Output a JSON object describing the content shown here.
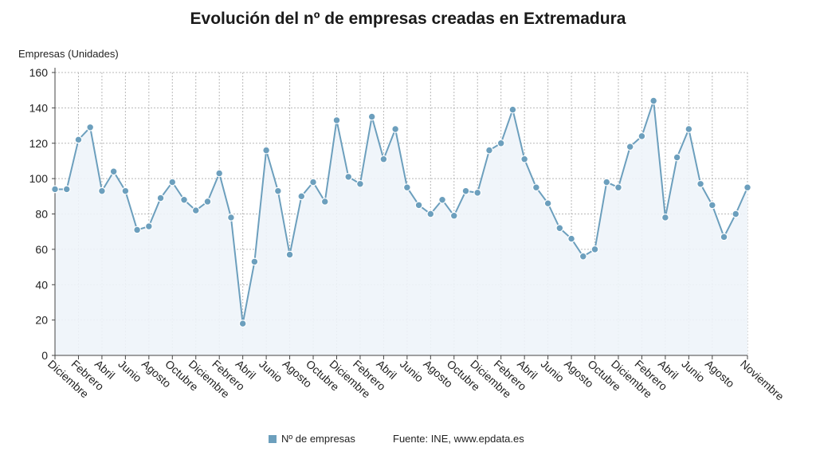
{
  "chart_data": {
    "type": "line",
    "title": "Evolución del nº de empresas creadas en Extremadura",
    "ylabel": "Empresas (Unidades)",
    "xlabel": "",
    "ylim": [
      0,
      160
    ],
    "yticks": [
      0,
      20,
      40,
      60,
      80,
      100,
      120,
      140,
      160
    ],
    "grid": true,
    "legend_position": "bottom",
    "x_tick_labels": [
      {
        "index": 0,
        "label": "Diciembre"
      },
      {
        "index": 2,
        "label": "Febrero"
      },
      {
        "index": 4,
        "label": "Abril"
      },
      {
        "index": 6,
        "label": "Junio"
      },
      {
        "index": 8,
        "label": "Agosto"
      },
      {
        "index": 10,
        "label": "Octubre"
      },
      {
        "index": 12,
        "label": "Diciembre"
      },
      {
        "index": 14,
        "label": "Febrero"
      },
      {
        "index": 16,
        "label": "Abril"
      },
      {
        "index": 18,
        "label": "Junio"
      },
      {
        "index": 20,
        "label": "Agosto"
      },
      {
        "index": 22,
        "label": "Octubre"
      },
      {
        "index": 24,
        "label": "Diciembre"
      },
      {
        "index": 26,
        "label": "Febrero"
      },
      {
        "index": 28,
        "label": "Abril"
      },
      {
        "index": 30,
        "label": "Junio"
      },
      {
        "index": 32,
        "label": "Agosto"
      },
      {
        "index": 34,
        "label": "Octubre"
      },
      {
        "index": 36,
        "label": "Diciembre"
      },
      {
        "index": 38,
        "label": "Febrero"
      },
      {
        "index": 40,
        "label": "Abril"
      },
      {
        "index": 42,
        "label": "Junio"
      },
      {
        "index": 44,
        "label": "Agosto"
      },
      {
        "index": 46,
        "label": "Octubre"
      },
      {
        "index": 48,
        "label": "Diciembre"
      },
      {
        "index": 50,
        "label": "Febrero"
      },
      {
        "index": 52,
        "label": "Abril"
      },
      {
        "index": 54,
        "label": "Junio"
      },
      {
        "index": 56,
        "label": "Agosto"
      },
      {
        "index": 59,
        "label": "Noviembre"
      }
    ],
    "series": [
      {
        "name": "Nº de empresas",
        "color": "#6c9fbd",
        "values": [
          94,
          94,
          122,
          129,
          93,
          104,
          93,
          71,
          73,
          89,
          98,
          88,
          82,
          87,
          103,
          78,
          18,
          53,
          116,
          93,
          57,
          90,
          98,
          87,
          133,
          101,
          97,
          135,
          111,
          128,
          95,
          85,
          80,
          88,
          79,
          93,
          92,
          116,
          120,
          139,
          111,
          95,
          86,
          72,
          66,
          56,
          60,
          98,
          95,
          118,
          124,
          144,
          78,
          112,
          128,
          97,
          85,
          67,
          80,
          95
        ]
      }
    ]
  },
  "footer": {
    "legend_label": "Nº de empresas",
    "source": "Fuente: INE, www.epdata.es"
  }
}
